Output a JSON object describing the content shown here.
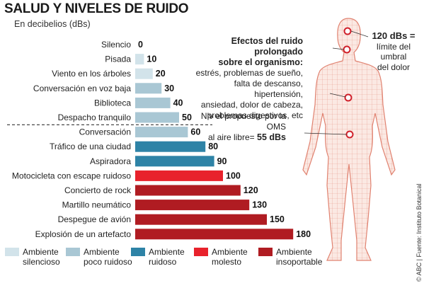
{
  "header": {
    "title": "SALUD Y NIVELES DE RUIDO",
    "subtitle": "En decibelios (dBs)"
  },
  "effects": {
    "heading_line1": "Efectos del ruido prolongado",
    "heading_line2": "sobre el  organismo:",
    "lines": [
      "estrés, problemas de sueño,",
      "falta de descanso, hipertensión,",
      "ansiedad, dolor de cabeza,",
      "problemas digestivos, etc"
    ]
  },
  "oms_note": {
    "line1": "Niv el propuesto por la OMS",
    "line2_prefix": "al aire libre= ",
    "line2_value": "55 dBs"
  },
  "pain_threshold": {
    "value": "120 dBs =",
    "line1": "límite del",
    "line2": "umbral",
    "line3": "del dolor"
  },
  "source": "© ABC | Fuente: Instituto Botanical",
  "colors": {
    "silencioso": "#d2e3ea",
    "poco_ruidoso": "#a9c7d4",
    "ruidoso": "#2e83a6",
    "molesto": "#e8222c",
    "insoportable": "#b01c22",
    "body_mesh": "#e08270",
    "marker": "#d0202a"
  },
  "legend": [
    {
      "line1": "Ambiente",
      "line2": "silencioso",
      "color": "#d2e3ea"
    },
    {
      "line1": "Ambiente",
      "line2": "poco ruidoso",
      "color": "#a9c7d4"
    },
    {
      "line1": "Ambiente",
      "line2": "ruidoso",
      "color": "#2e83a6"
    },
    {
      "line1": "Ambiente",
      "line2": "molesto",
      "color": "#e8222c"
    },
    {
      "line1": "Ambiente",
      "line2": "insoportable",
      "color": "#b01c22"
    }
  ],
  "chart_data": {
    "type": "bar",
    "orientation": "horizontal",
    "title": "SALUD Y NIVELES DE RUIDO",
    "unit": "dBs",
    "reference_line": {
      "value": 55,
      "label": "Niv el propuesto por la OMS al aire libre= 55 dBs"
    },
    "categories": [
      "Silencio",
      "Pisada",
      "Viento en los árboles",
      "Conversación en voz baja",
      "Biblioteca",
      "Despacho tranquilo",
      "Conversación",
      "Tráfico de una ciudad",
      "Aspiradora",
      "Motocicleta con escape ruidoso",
      "Concierto de rock",
      "Martillo neumático",
      "Despegue de avión",
      "Explosión de un artefacto"
    ],
    "values": [
      0,
      10,
      20,
      30,
      40,
      50,
      60,
      80,
      90,
      100,
      120,
      130,
      150,
      180
    ],
    "levels": [
      "silencioso",
      "silencioso",
      "silencioso",
      "poco_ruidoso",
      "poco_ruidoso",
      "poco_ruidoso",
      "poco_ruidoso",
      "ruidoso",
      "ruidoso",
      "molesto",
      "insoportable",
      "insoportable",
      "insoportable",
      "insoportable"
    ]
  }
}
